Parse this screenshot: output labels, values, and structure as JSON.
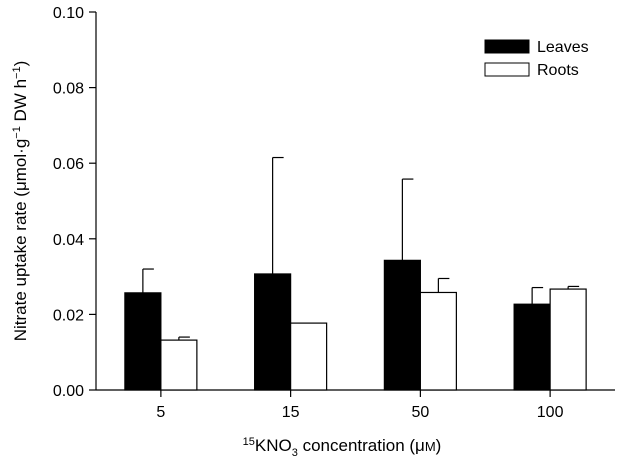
{
  "chart_data": {
    "type": "bar",
    "title": "",
    "xlabel": {
      "prefix_superscript": "15",
      "main": "KNO",
      "subscript": "3",
      "rest": " concentration (μ",
      "unit_smallcaps": "M",
      "end": ")"
    },
    "ylabel": {
      "part1": "Nitrate uptake rate (μmol·g",
      "sup1": "−1",
      "part2": " DW h",
      "sup2": "−1",
      "end": ")"
    },
    "categories": [
      "5",
      "15",
      "50",
      "100"
    ],
    "series": [
      {
        "name": "Leaves",
        "color": "#000000",
        "values": [
          0.0257,
          0.0307,
          0.0343,
          0.0227
        ],
        "errors": [
          0.0063,
          0.0308,
          0.0215,
          0.0044
        ]
      },
      {
        "name": "Roots",
        "color": "#ffffff",
        "values": [
          0.0132,
          0.0177,
          0.0258,
          0.0267
        ],
        "errors": [
          0.0008,
          0.0,
          0.0037,
          0.0007
        ]
      }
    ],
    "ylim": [
      0.0,
      0.1
    ],
    "yticks": [
      "0.00",
      "0.02",
      "0.04",
      "0.06",
      "0.08",
      "0.10"
    ],
    "legend": {
      "placement": "top-right"
    },
    "grid": false
  }
}
